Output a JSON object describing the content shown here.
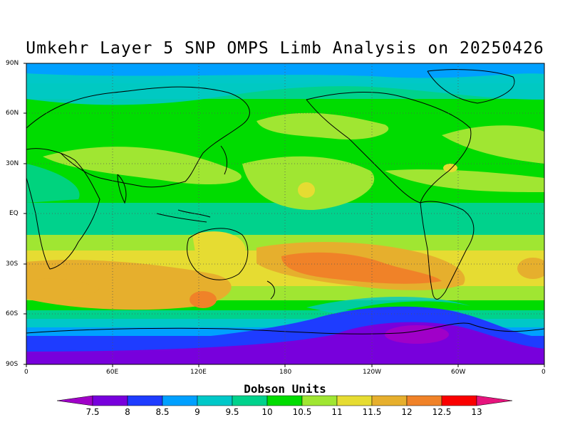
{
  "title": "Umkehr Layer 5 SNP OMPS Limb Analysis on 20250426",
  "y_axis_ticks": [
    "90N",
    "60N",
    "30N",
    "EQ",
    "30S",
    "60S",
    "90S"
  ],
  "x_axis_ticks": [
    "0",
    "60E",
    "120E",
    "180",
    "120W",
    "60W",
    "0"
  ],
  "colorbar": {
    "title": "Dobson Units",
    "labels": [
      "7.5",
      "8",
      "8.5",
      "9",
      "9.5",
      "10",
      "10.5",
      "11",
      "11.5",
      "12",
      "12.5",
      "13"
    ],
    "colors": [
      "#a000c8",
      "#7800dc",
      "#1e3cff",
      "#00a0ff",
      "#00c8c8",
      "#00d28c",
      "#00dc00",
      "#a0e632",
      "#e6dc32",
      "#e6af2d",
      "#f08228",
      "#fa0000",
      "#e6147d"
    ]
  },
  "map_colors": {
    "land_outline": "#000000",
    "grid": "#555555"
  }
}
